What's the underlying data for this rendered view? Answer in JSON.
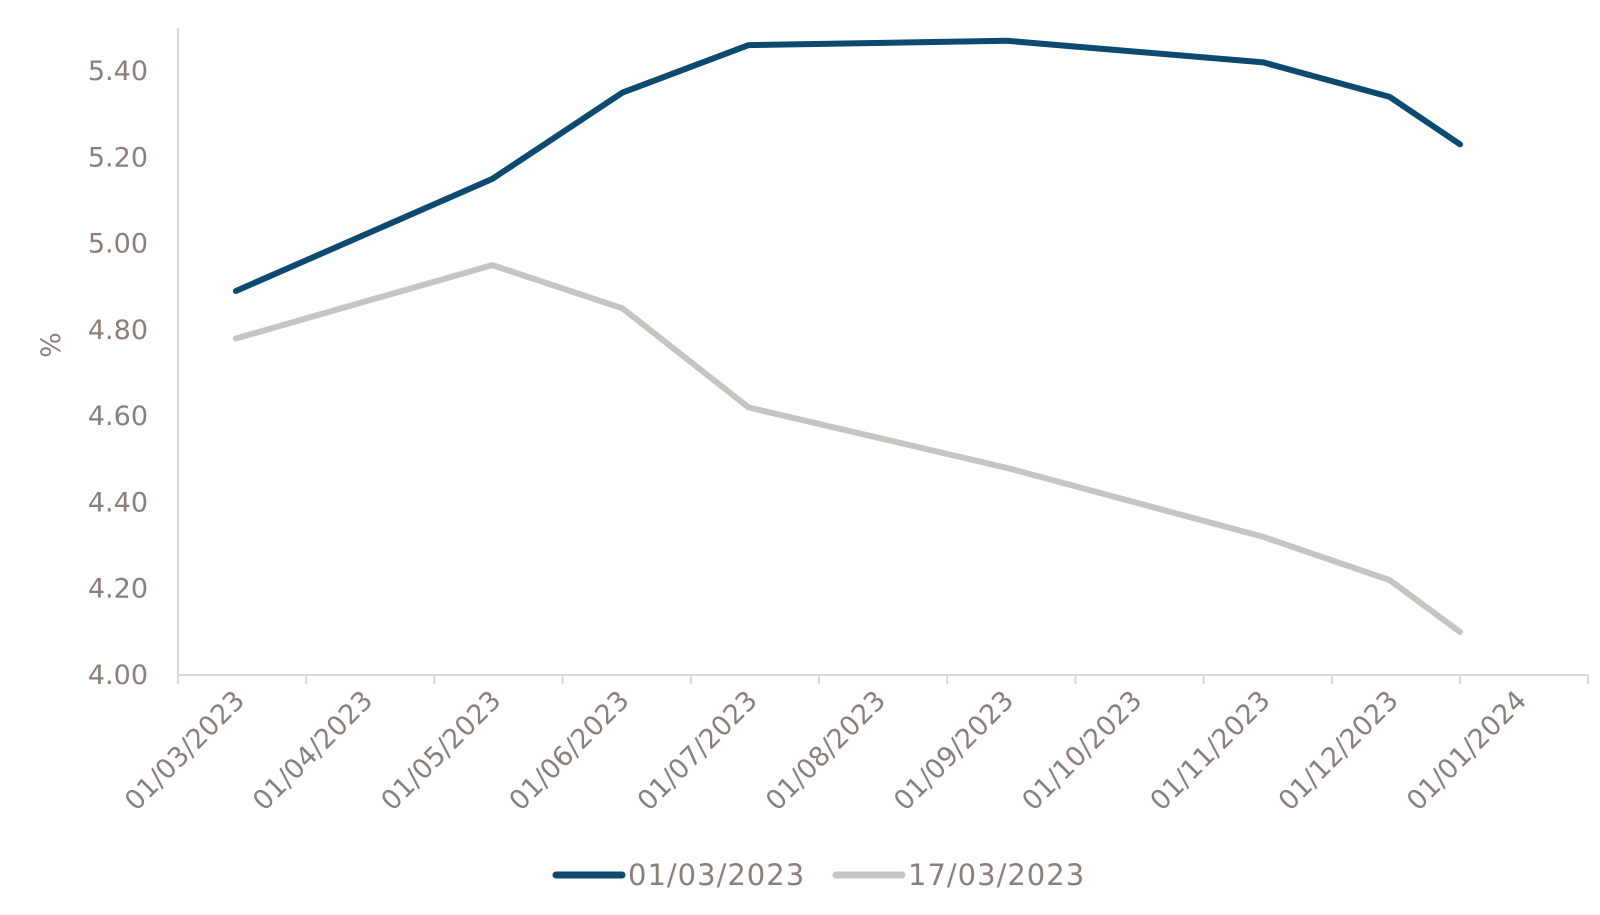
{
  "chart_data": {
    "type": "line",
    "ylabel": "%",
    "xlabel": "",
    "ylim": [
      4.0,
      5.4
    ],
    "y_ticks": [
      "4.00",
      "4.20",
      "4.40",
      "4.60",
      "4.80",
      "5.00",
      "5.20",
      "5.40"
    ],
    "x_tick_labels": [
      "01/03/2023",
      "01/04/2023",
      "01/05/2023",
      "01/06/2023",
      "01/07/2023",
      "01/08/2023",
      "01/09/2023",
      "01/10/2023",
      "01/11/2023",
      "01/12/2023",
      "01/01/2024"
    ],
    "x": [
      "15/03/2023",
      "15/05/2023",
      "15/06/2023",
      "15/07/2023",
      "15/09/2023",
      "15/11/2023",
      "15/12/2023",
      "15/01/2024"
    ],
    "grid": false,
    "legend_position": "bottom",
    "series": [
      {
        "name": "01/03/2023",
        "color": "#0d4a70",
        "values": [
          4.89,
          5.15,
          5.35,
          5.46,
          5.47,
          5.42,
          5.34,
          5.23
        ]
      },
      {
        "name": "17/03/2023",
        "color": "#c8c5c0",
        "values": [
          4.78,
          4.95,
          4.85,
          4.62,
          4.48,
          4.32,
          4.22,
          4.1
        ]
      }
    ]
  }
}
